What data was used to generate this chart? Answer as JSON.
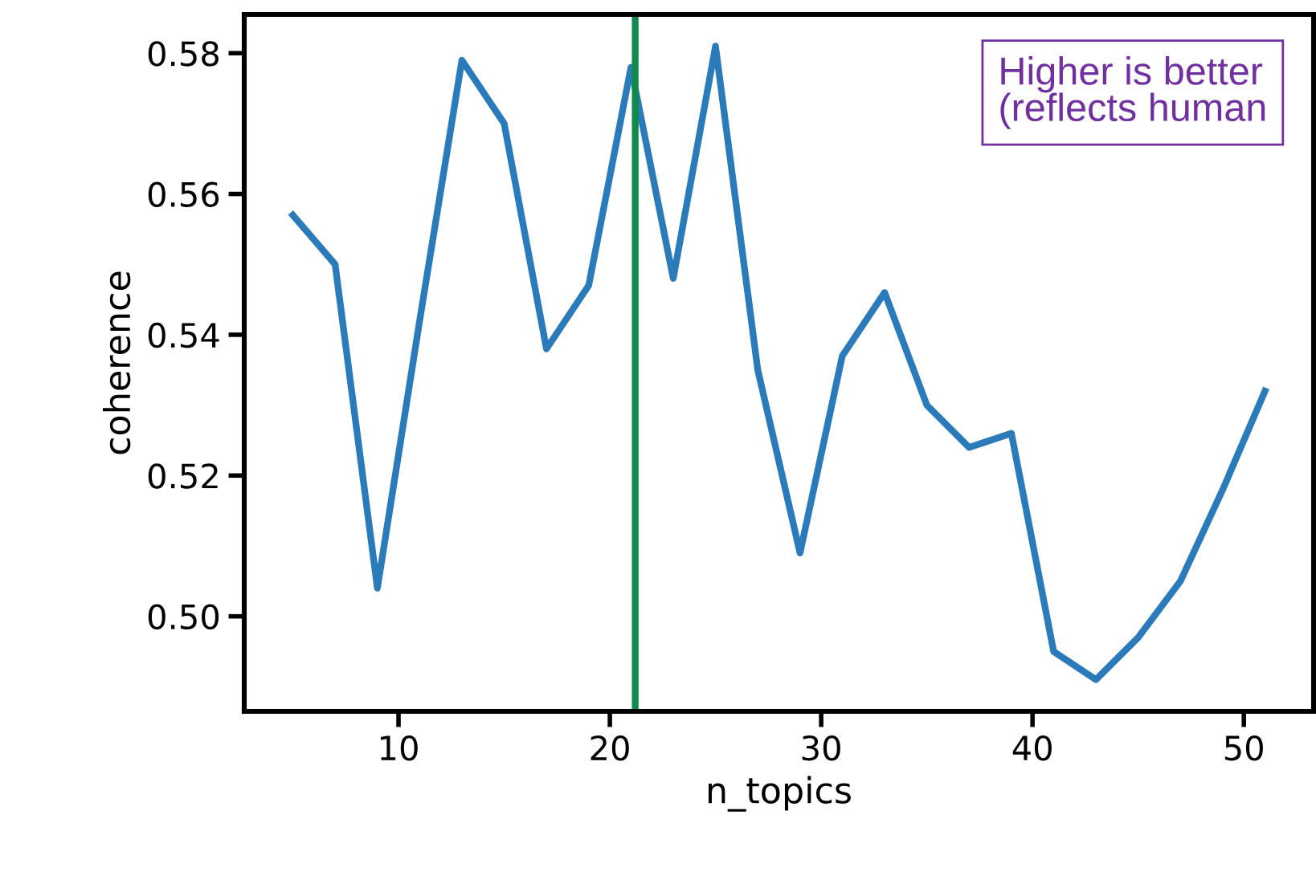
{
  "chart_data": {
    "type": "line",
    "xlabel": "n_topics",
    "ylabel": "coherence",
    "x": [
      5,
      7,
      9,
      11,
      13,
      15,
      17,
      19,
      21,
      23,
      25,
      27,
      29,
      31,
      33,
      35,
      37,
      39,
      41,
      43,
      45,
      47,
      49,
      51
    ],
    "series": [
      {
        "color": "#2b7bba",
        "values": [
          0.557,
          0.55,
          0.504,
          0.542,
          0.579,
          0.57,
          0.538,
          0.547,
          0.578,
          0.548,
          0.581,
          0.535,
          0.509,
          0.537,
          0.546,
          0.53,
          0.524,
          0.526,
          0.495,
          0.491,
          0.497,
          0.505,
          0.518,
          0.532
        ]
      }
    ],
    "xlim": [
      2.7,
      53.3
    ],
    "ylim": [
      0.4865,
      0.5855
    ],
    "xticks": [
      10,
      20,
      30,
      40,
      50
    ],
    "yticks": [
      {
        "value": 0.5,
        "label": "0.50"
      },
      {
        "value": 0.52,
        "label": "0.52"
      },
      {
        "value": 0.54,
        "label": "0.54"
      },
      {
        "value": 0.56,
        "label": "0.56"
      },
      {
        "value": 0.58,
        "label": "0.58"
      }
    ],
    "ref_lines": [
      {
        "axis": "x",
        "value": 21.2,
        "color": "#0f8a4c"
      }
    ],
    "annotations": [
      "Higher is better\n(reflects human"
    ],
    "grid": false,
    "legend": false,
    "marker": "none",
    "line_style": "solid"
  }
}
